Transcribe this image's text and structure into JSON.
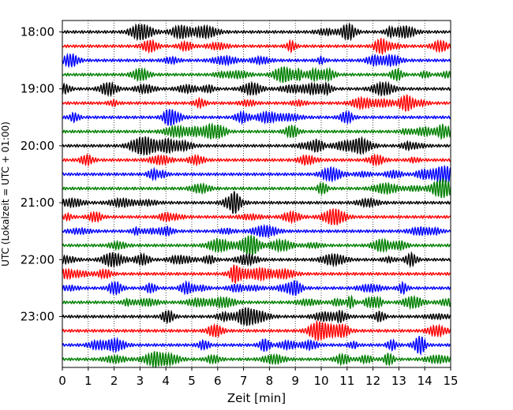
{
  "chart_data": {
    "type": "line",
    "title": "",
    "xlabel": "Zeit  [min]",
    "ylabel": "UTC (Lokalzeit = UTC + 01:00)",
    "xlim": [
      0,
      15
    ],
    "x_ticks": [
      0,
      1,
      2,
      3,
      4,
      5,
      6,
      7,
      8,
      9,
      10,
      11,
      12,
      13,
      14,
      15
    ],
    "y_tick_labels": [
      "18:00",
      "19:00",
      "20:00",
      "21:00",
      "22:00",
      "23:00"
    ],
    "grid": "vertical dotted lines at each minute",
    "trace_colors": [
      "#000000",
      "#ff0000",
      "#0000ff",
      "#008000"
    ],
    "traces_per_hour": 4,
    "minutes_per_trace": 15,
    "start_time": "18:00",
    "trace_count": 24
  }
}
